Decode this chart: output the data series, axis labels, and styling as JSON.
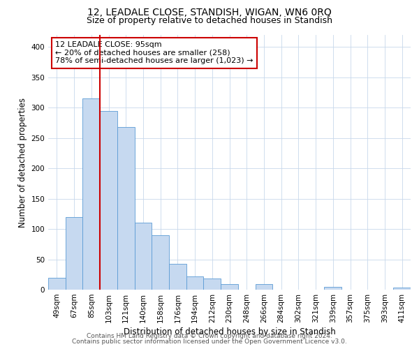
{
  "title": "12, LEADALE CLOSE, STANDISH, WIGAN, WN6 0RQ",
  "subtitle": "Size of property relative to detached houses in Standish",
  "xlabel": "Distribution of detached houses by size in Standish",
  "ylabel": "Number of detached properties",
  "bar_labels": [
    "49sqm",
    "67sqm",
    "85sqm",
    "103sqm",
    "121sqm",
    "140sqm",
    "158sqm",
    "176sqm",
    "194sqm",
    "212sqm",
    "230sqm",
    "248sqm",
    "266sqm",
    "284sqm",
    "302sqm",
    "321sqm",
    "339sqm",
    "357sqm",
    "375sqm",
    "393sqm",
    "411sqm"
  ],
  "bar_heights": [
    20,
    120,
    315,
    295,
    268,
    110,
    90,
    43,
    22,
    18,
    9,
    0,
    9,
    0,
    0,
    0,
    5,
    0,
    0,
    0,
    3
  ],
  "bar_color": "#c6d9f0",
  "bar_edge_color": "#5b9bd5",
  "vline_color": "#cc0000",
  "annotation_text": "12 LEADALE CLOSE: 95sqm\n← 20% of detached houses are smaller (258)\n78% of semi-detached houses are larger (1,023) →",
  "annotation_box_color": "#ffffff",
  "annotation_box_edge": "#cc0000",
  "ylim": [
    0,
    420
  ],
  "footer1": "Contains HM Land Registry data © Crown copyright and database right 2024.",
  "footer2": "Contains public sector information licensed under the Open Government Licence v3.0.",
  "bg_color": "#ffffff",
  "grid_color": "#c8d8eb",
  "title_fontsize": 10,
  "subtitle_fontsize": 9,
  "axis_fontsize": 8.5,
  "tick_fontsize": 7.5,
  "footer_fontsize": 6.5,
  "annotation_fontsize": 8
}
